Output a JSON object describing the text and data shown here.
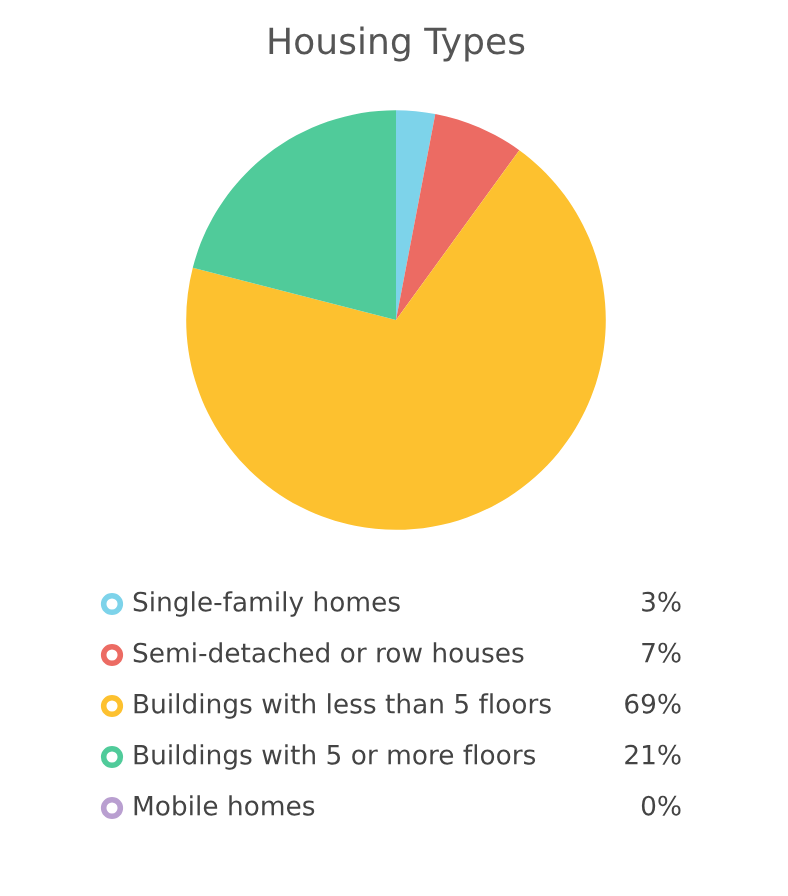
{
  "chart_data": {
    "type": "pie",
    "title": "Housing Types",
    "categories": [
      "Single-family homes",
      "Semi-detached or row houses",
      "Buildings with less than 5 floors",
      "Buildings with 5 or more floors",
      "Mobile homes"
    ],
    "values": [
      3,
      7,
      69,
      21,
      0
    ],
    "colors": [
      "#7dd3ea",
      "#ec6b63",
      "#fdc12f",
      "#50cb9a",
      "#b99fd0"
    ],
    "value_labels": [
      "3%",
      "7%",
      "69%",
      "21%",
      "0%"
    ],
    "legend": "bottom"
  }
}
